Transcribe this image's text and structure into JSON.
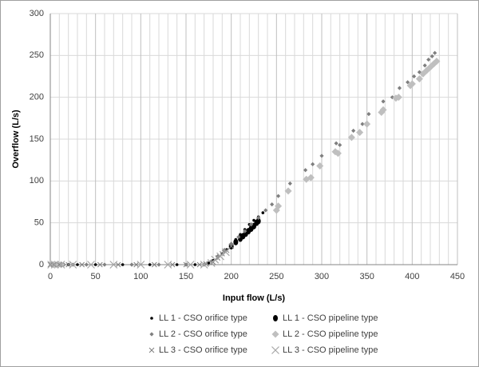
{
  "chart_data": {
    "type": "scatter",
    "x_label": "Input flow (L/s)",
    "y_label": "Overflow (L/s)",
    "xlim": [
      0,
      450
    ],
    "xticks": [
      0,
      50,
      100,
      150,
      200,
      250,
      300,
      350,
      400,
      450
    ],
    "ylim": [
      0,
      300
    ],
    "yticks": [
      0,
      50,
      100,
      150,
      200,
      250,
      300
    ],
    "grid": true,
    "x_minor_grid": true,
    "legend": "bottom",
    "series": [
      {
        "name": "LL 1 - CSO orifice type",
        "color": "#000000",
        "marker": "dot",
        "x": [
          2,
          5,
          10,
          20,
          30,
          50,
          80,
          110,
          140,
          160,
          175,
          180,
          185,
          190,
          195,
          200,
          205,
          210,
          215,
          220,
          225,
          230,
          235
        ],
        "values": [
          0,
          0,
          0,
          0,
          0,
          0,
          0,
          0,
          0,
          0,
          2,
          5,
          9,
          13,
          18,
          24,
          30,
          36,
          42,
          48,
          53,
          57,
          62
        ]
      },
      {
        "name": "LL 1 - CSO pipeline type",
        "color": "#000000",
        "marker": "circle",
        "x": [
          200,
          205,
          210,
          213,
          216,
          219,
          222,
          225,
          228,
          230
        ],
        "values": [
          22,
          27,
          31,
          34,
          37,
          40,
          43,
          46,
          50,
          52
        ]
      },
      {
        "name": "LL 2 - CSO orifice type",
        "color": "#7f7f7f",
        "marker": "small-diamond",
        "x": [
          3,
          8,
          15,
          25,
          40,
          60,
          90,
          120,
          150,
          170,
          178,
          185,
          192,
          200,
          208,
          215,
          222,
          230,
          238,
          245,
          252,
          265,
          282,
          290,
          300,
          316,
          320,
          335,
          345,
          352,
          368,
          378,
          386,
          395,
          402,
          408,
          414,
          418,
          422,
          425
        ],
        "values": [
          0,
          0,
          0,
          0,
          0,
          0,
          0,
          0,
          0,
          0,
          4,
          10,
          17,
          25,
          33,
          40,
          48,
          56,
          65,
          72,
          82,
          97,
          113,
          120,
          130,
          145,
          143,
          160,
          168,
          180,
          195,
          200,
          211,
          218,
          225,
          230,
          238,
          245,
          249,
          253
        ]
      },
      {
        "name": "LL 2 - CSO pipeline type",
        "color": "#bfbfbf",
        "marker": "diamond",
        "x": [
          2,
          6,
          12,
          250,
          252,
          263,
          283,
          288,
          298,
          315,
          318,
          333,
          342,
          350,
          366,
          368,
          382,
          385,
          398,
          400,
          408,
          412,
          416,
          420,
          424,
          427
        ],
        "values": [
          0,
          0,
          0,
          65,
          70,
          88,
          102,
          104,
          118,
          135,
          133,
          152,
          158,
          168,
          182,
          185,
          199,
          200,
          214,
          216,
          222,
          228,
          232,
          236,
          240,
          243
        ]
      },
      {
        "name": "LL 3 - CSO orifice type",
        "color": "#808080",
        "marker": "x",
        "x": [
          0,
          4,
          10,
          20,
          35,
          55,
          75,
          95,
          115,
          135,
          150,
          165,
          172,
          180,
          185,
          190,
          195,
          200
        ],
        "values": [
          0,
          0,
          0,
          0,
          0,
          0,
          0,
          0,
          0,
          0,
          0,
          0,
          1,
          3,
          8,
          13,
          17,
          22
        ]
      },
      {
        "name": "LL 3 - CSO pipeline type",
        "color": "#a6a6a6",
        "marker": "large-x",
        "x": [
          1,
          5,
          12,
          25,
          45,
          70,
          100,
          130,
          155,
          170,
          178,
          182,
          188,
          194
        ],
        "values": [
          0,
          0,
          0,
          0,
          0,
          0,
          0,
          0,
          0,
          0,
          2,
          6,
          10,
          15
        ]
      }
    ]
  }
}
